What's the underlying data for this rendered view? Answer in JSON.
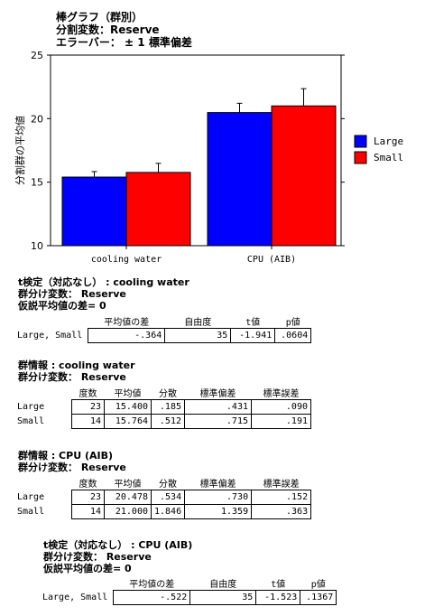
{
  "header": {
    "line1": "棒グラフ（群別）",
    "line2": "分割変数：Reserve",
    "line3": "エラーバー：  ± 1 標準偏差"
  },
  "chart_data": {
    "type": "bar",
    "categories": [
      "cooling water",
      "CPU (AIB)"
    ],
    "series": [
      {
        "name": "Large",
        "values": [
          15.4,
          20.478
        ],
        "errors": [
          0.431,
          0.73
        ],
        "color": "#0000ff"
      },
      {
        "name": "Small",
        "values": [
          15.764,
          21.0
        ],
        "errors": [
          0.715,
          1.359
        ],
        "color": "#ff0000"
      }
    ],
    "ylabel": "分割群の平均値",
    "ylim": [
      10,
      25
    ],
    "yticks": [
      "10",
      "15",
      "20",
      "25"
    ],
    "error_bars": "± 1 SD",
    "legend": "right"
  },
  "sections": [
    {
      "title": [
        "t検定（対応なし）  : cooling water",
        "群分け変数： Reserve",
        "仮説平均値の差= 0"
      ],
      "headers": [
        "平均値の差",
        "自由度",
        "t値",
        "p値"
      ],
      "rows": [
        {
          "label": "Large, Small",
          "cells": [
            "-.364",
            "35",
            "-1.941",
            ".0604"
          ]
        }
      ]
    },
    {
      "title": [
        "群情報  : cooling water",
        "群分け変数： Reserve"
      ],
      "headers": [
        "度数",
        "平均値",
        "分散",
        "標準偏差",
        "標準誤差"
      ],
      "rows": [
        {
          "label": "Large",
          "cells": [
            "23",
            "15.400",
            ".185",
            ".431",
            ".090"
          ]
        },
        {
          "label": "Small",
          "cells": [
            "14",
            "15.764",
            ".512",
            ".715",
            ".191"
          ]
        }
      ]
    },
    {
      "title": [
        "群情報  : CPU (AIB)",
        "群分け変数： Reserve"
      ],
      "headers": [
        "度数",
        "平均値",
        "分散",
        "標準偏差",
        "標準誤差"
      ],
      "rows": [
        {
          "label": "Large",
          "cells": [
            "23",
            "20.478",
            ".534",
            ".730",
            ".152"
          ]
        },
        {
          "label": "Small",
          "cells": [
            "14",
            "21.000",
            "1.846",
            "1.359",
            ".363"
          ]
        }
      ]
    },
    {
      "title": [
        "t検定（対応なし）  : CPU (AIB)",
        "群分け変数： Reserve",
        "仮説平均値の差= 0"
      ],
      "headers": [
        "平均値の差",
        "自由度",
        "t値",
        "p値"
      ],
      "rows": [
        {
          "label": "Large, Small",
          "cells": [
            "-.522",
            "35",
            "-1.523",
            ".1367"
          ]
        }
      ]
    }
  ]
}
